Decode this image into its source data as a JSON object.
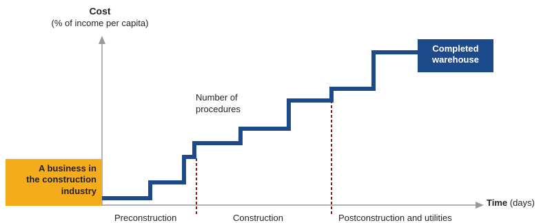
{
  "y_axis": {
    "title": "Cost",
    "subtitle": "(% of income per capita)"
  },
  "x_axis": {
    "title": "Time",
    "unit": "(days)"
  },
  "start_box": {
    "line1": "A business in",
    "line2": "the construction",
    "line3": "industry"
  },
  "end_box": {
    "line1": "Completed",
    "line2": "warehouse"
  },
  "step_label": {
    "line1": "Number of",
    "line2": "procedures"
  },
  "phases": [
    "Preconstruction",
    "Construction",
    "Postconstruction and utilities"
  ],
  "colors": {
    "step_line": "#1c4a8b",
    "start_box": "#f5ac1b",
    "end_box": "#1c4a8b",
    "divider": "#8b1a1a",
    "axis": "#9a9a9a"
  }
}
